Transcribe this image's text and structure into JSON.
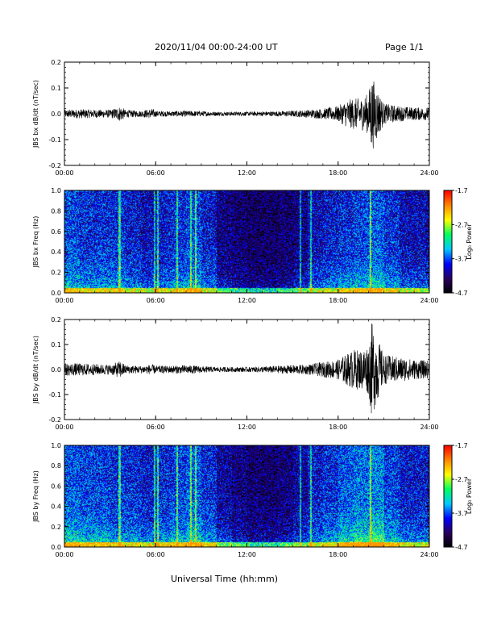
{
  "header": {
    "title": "2020/11/04  00:00-24:00 UT",
    "page": "Page 1/1"
  },
  "x_axis_title": "Universal Time (hh:mm)",
  "colors": {
    "trace": "#000000",
    "colorbar_stops": [
      "#000000",
      "#2a0060",
      "#0000ff",
      "#00c8ff",
      "#00ff60",
      "#ffff00",
      "#ff8800",
      "#ff0000"
    ]
  },
  "chart_data": [
    {
      "type": "line",
      "id": "bx-dbdt",
      "ylabel": "JBS bx dB/dt (nT/sec)",
      "xticks": [
        "00:00",
        "06:00",
        "12:00",
        "18:00",
        "24:00"
      ],
      "xlim": [
        0,
        24
      ],
      "ylim": [
        -0.2,
        0.2
      ],
      "yticks": [
        "0.2",
        "0.1",
        "0.0",
        "-0.1",
        "-0.2"
      ],
      "x": [
        0,
        1,
        2,
        3,
        3.7,
        4,
        5,
        5.8,
        6,
        7,
        8,
        9,
        10,
        11,
        12,
        13,
        14,
        15,
        16,
        17,
        18,
        18.5,
        19,
        19.5,
        20,
        20.2,
        21,
        22,
        23,
        24
      ],
      "envelope": [
        0.015,
        0.018,
        0.016,
        0.015,
        0.03,
        0.015,
        0.012,
        0.02,
        0.012,
        0.01,
        0.012,
        0.01,
        0.008,
        0.008,
        0.008,
        0.009,
        0.01,
        0.012,
        0.015,
        0.02,
        0.03,
        0.05,
        0.06,
        0.06,
        0.08,
        0.15,
        0.04,
        0.03,
        0.025,
        0.025
      ]
    },
    {
      "type": "heatmap",
      "id": "bx-freq",
      "ylabel": "JBS bx Freq (Hz)",
      "xticks": [
        "00:00",
        "06:00",
        "12:00",
        "18:00",
        "24:00"
      ],
      "xlim": [
        0,
        24
      ],
      "ylim": [
        0.0,
        1.0
      ],
      "yticks": [
        "1.0",
        "0.8",
        "0.6",
        "0.4",
        "0.2",
        "0.0"
      ],
      "colorbar_label": "Log₀ Power",
      "colorbar_ticks": [
        "-1.7",
        "-2.7",
        "-3.7",
        "-4.7"
      ],
      "clim": [
        -4.7,
        -1.7
      ],
      "activity": [
        0.55,
        0.5,
        0.5,
        0.5,
        0.45,
        0.4,
        0.45,
        0.5,
        0.55,
        0.45,
        0.3,
        0.25,
        0.22,
        0.22,
        0.25,
        0.3,
        0.4,
        0.45,
        0.5,
        0.55,
        0.6,
        0.5,
        0.4,
        0.4
      ]
    },
    {
      "type": "line",
      "id": "by-dbdt",
      "ylabel": "JBS by dB/dt (nT/sec)",
      "xticks": [
        "00:00",
        "06:00",
        "12:00",
        "18:00",
        "24:00"
      ],
      "xlim": [
        0,
        24
      ],
      "ylim": [
        -0.2,
        0.2
      ],
      "yticks": [
        "0.2",
        "0.1",
        "0.0",
        "-0.1",
        "-0.2"
      ],
      "x": [
        0,
        1,
        2,
        3,
        3.7,
        4,
        5,
        5.8,
        6,
        7,
        8,
        9,
        10,
        11,
        12,
        13,
        14,
        15,
        16,
        17,
        18,
        18.5,
        19,
        19.5,
        20,
        20.2,
        21,
        22,
        23,
        24
      ],
      "envelope": [
        0.025,
        0.025,
        0.022,
        0.02,
        0.035,
        0.018,
        0.015,
        0.02,
        0.015,
        0.015,
        0.018,
        0.014,
        0.01,
        0.01,
        0.01,
        0.012,
        0.015,
        0.018,
        0.02,
        0.03,
        0.04,
        0.06,
        0.08,
        0.08,
        0.1,
        0.19,
        0.06,
        0.05,
        0.04,
        0.035
      ]
    },
    {
      "type": "heatmap",
      "id": "by-freq",
      "ylabel": "JBS by Freq (Hz)",
      "xticks": [
        "00:00",
        "06:00",
        "12:00",
        "18:00",
        "24:00"
      ],
      "xlim": [
        0,
        24
      ],
      "ylim": [
        0.0,
        1.0
      ],
      "yticks": [
        "1.0",
        "0.8",
        "0.6",
        "0.4",
        "0.2",
        "0.0"
      ],
      "colorbar_label": "Log₀ Power",
      "colorbar_ticks": [
        "-1.7",
        "-2.7",
        "-3.7",
        "-4.7"
      ],
      "clim": [
        -4.7,
        -1.7
      ],
      "activity": [
        0.6,
        0.55,
        0.55,
        0.5,
        0.5,
        0.45,
        0.5,
        0.55,
        0.6,
        0.5,
        0.35,
        0.3,
        0.25,
        0.25,
        0.28,
        0.35,
        0.45,
        0.5,
        0.6,
        0.65,
        0.7,
        0.55,
        0.45,
        0.45
      ]
    }
  ]
}
